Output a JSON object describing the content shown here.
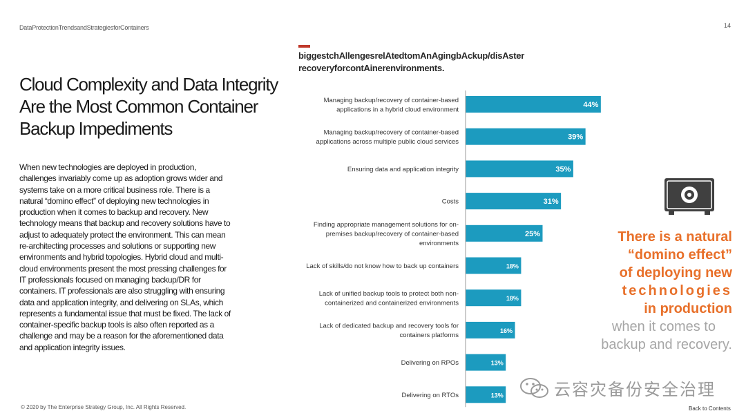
{
  "header": {
    "running_title": "DataProtectionTrendsandStrategiesforContainers",
    "page_number": "14"
  },
  "headline": "Cloud Complexity and Data Integrity Are the Most Common Container Backup Impediments",
  "body": "When new technologies are deployed in production, challenges invariably come up as adoption grows wider and systems take on a more critical business role. There is a natural “domino effect” of deploying new technologies in production when it comes to backup and recovery. New technology means that backup and recovery solutions have to adjust to adequately protect the environment. This can mean re-architecting processes and solutions or supporting new environments and hybrid topologies. Hybrid cloud and multi-cloud environments present the most pressing challenges for IT professionals focused on managing backup/DR for containers. IT professionals are also struggling with ensuring data and application integrity, and delivering on SLAs, which represents a fundamental issue that must be fixed. The lack of container-specific backup tools is also often reported as a challenge and may be a reason for the aforementioned data and application integrity issues.",
  "chart_data": {
    "type": "bar",
    "orientation": "horizontal",
    "title": "biggestchAllengesrelAtedtomAnAgingbAckup/disAster recoveryforcontAinerenvironments.",
    "bar_color": "#1c9bbf",
    "value_suffix": "%",
    "xlim": [
      0,
      50
    ],
    "categories": [
      [
        "Managing backup/recovery of container-based",
        "applications in a hybrid cloud environment"
      ],
      [
        "Managing backup/recovery of container-based",
        "applications across multiple public cloud services"
      ],
      [
        "Ensuring data and application integrity"
      ],
      [
        "Costs"
      ],
      [
        "Finding appropriate management solutions for on-",
        "premises backup/recovery of container-based",
        "environments"
      ],
      [
        "Lack of skills/do not know how to back up containers"
      ],
      [
        "Lack of unified backup tools to protect both non-",
        "containerized and containerized environments"
      ],
      [
        "Lack of dedicated backup and recovery tools for",
        "containers platforms"
      ],
      [
        "Delivering on RPOs"
      ],
      [
        "Delivering on RTOs"
      ]
    ],
    "values": [
      44,
      39,
      35,
      31,
      25,
      18,
      18,
      16,
      13,
      13
    ]
  },
  "callout": {
    "line1": "There is a natural",
    "line2": "“domino effect”",
    "line3": "of deploying new",
    "line4": "technologies",
    "line5": "in production",
    "line6": "when it comes to",
    "line7": "backup and recovery.",
    "icon": "safe-icon",
    "accent_color": "#e8702a"
  },
  "footer": {
    "copyright": "© 2020 by The Enterprise Strategy Group, Inc. All Rights Reserved.",
    "back_link": "Back to Contents"
  },
  "watermark": {
    "text": "云容灾备份安全治理",
    "icon": "wechat-icon"
  }
}
